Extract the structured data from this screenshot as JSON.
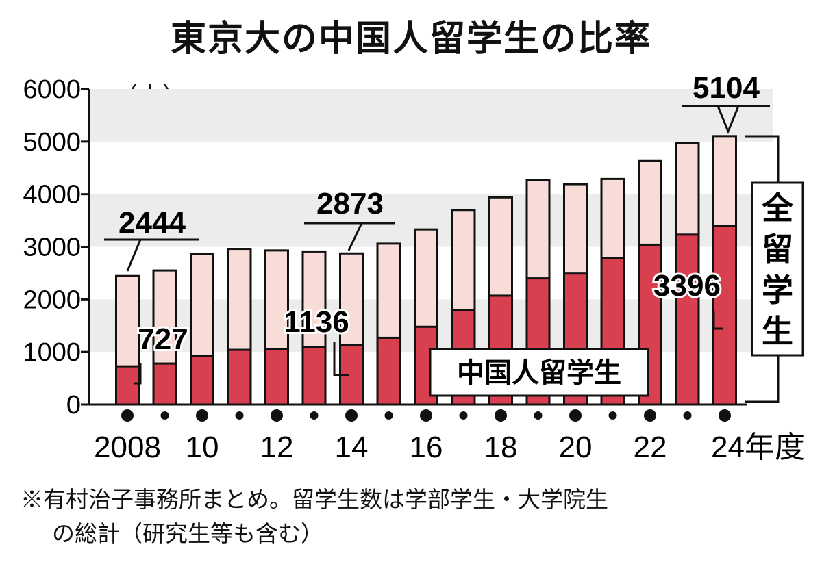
{
  "title": "東京大の中国人留学生の比率",
  "unit_label": "（人）",
  "note": {
    "line1": "※有村治子事務所まとめ。留学生数は学部学生・大学院生",
    "line2": "の総計（研究生等も含む）"
  },
  "legend": {
    "chinese": "中国人留学生",
    "total": "全留学生"
  },
  "callouts": {
    "total_2008": "2444",
    "total_2014": "2873",
    "total_2024": "5104",
    "chinese_2008": "727",
    "chinese_2014": "1136",
    "chinese_2024": "3396"
  },
  "colors": {
    "chinese": "#d9404f",
    "total": "#f7dcd7",
    "band": "#ececec"
  },
  "chart_data": {
    "type": "bar",
    "title": "東京大の中国人留学生の比率",
    "ylabel": "（人）",
    "ylim": [
      0,
      6000
    ],
    "yticks": [
      "0",
      "1000",
      "2000",
      "3000",
      "4000",
      "5000",
      "6000"
    ],
    "categories": [
      "2008",
      "2009",
      "2010",
      "2011",
      "2012",
      "2013",
      "2014",
      "2015",
      "2016",
      "2017",
      "2018",
      "2019",
      "2020",
      "2021",
      "2022",
      "2023",
      "2024"
    ],
    "xtick_labels": [
      "2008",
      "10",
      "12",
      "14",
      "16",
      "18",
      "20",
      "22",
      "24年度"
    ],
    "series": [
      {
        "name": "全留学生",
        "values": [
          2444,
          2550,
          2870,
          2960,
          2930,
          2910,
          2873,
          3060,
          3330,
          3700,
          3940,
          4270,
          4190,
          4290,
          4630,
          4970,
          5104
        ]
      },
      {
        "name": "中国人留学生",
        "values": [
          727,
          780,
          930,
          1040,
          1060,
          1090,
          1136,
          1270,
          1480,
          1800,
          2070,
          2400,
          2490,
          2780,
          3040,
          3230,
          3396
        ]
      }
    ]
  }
}
